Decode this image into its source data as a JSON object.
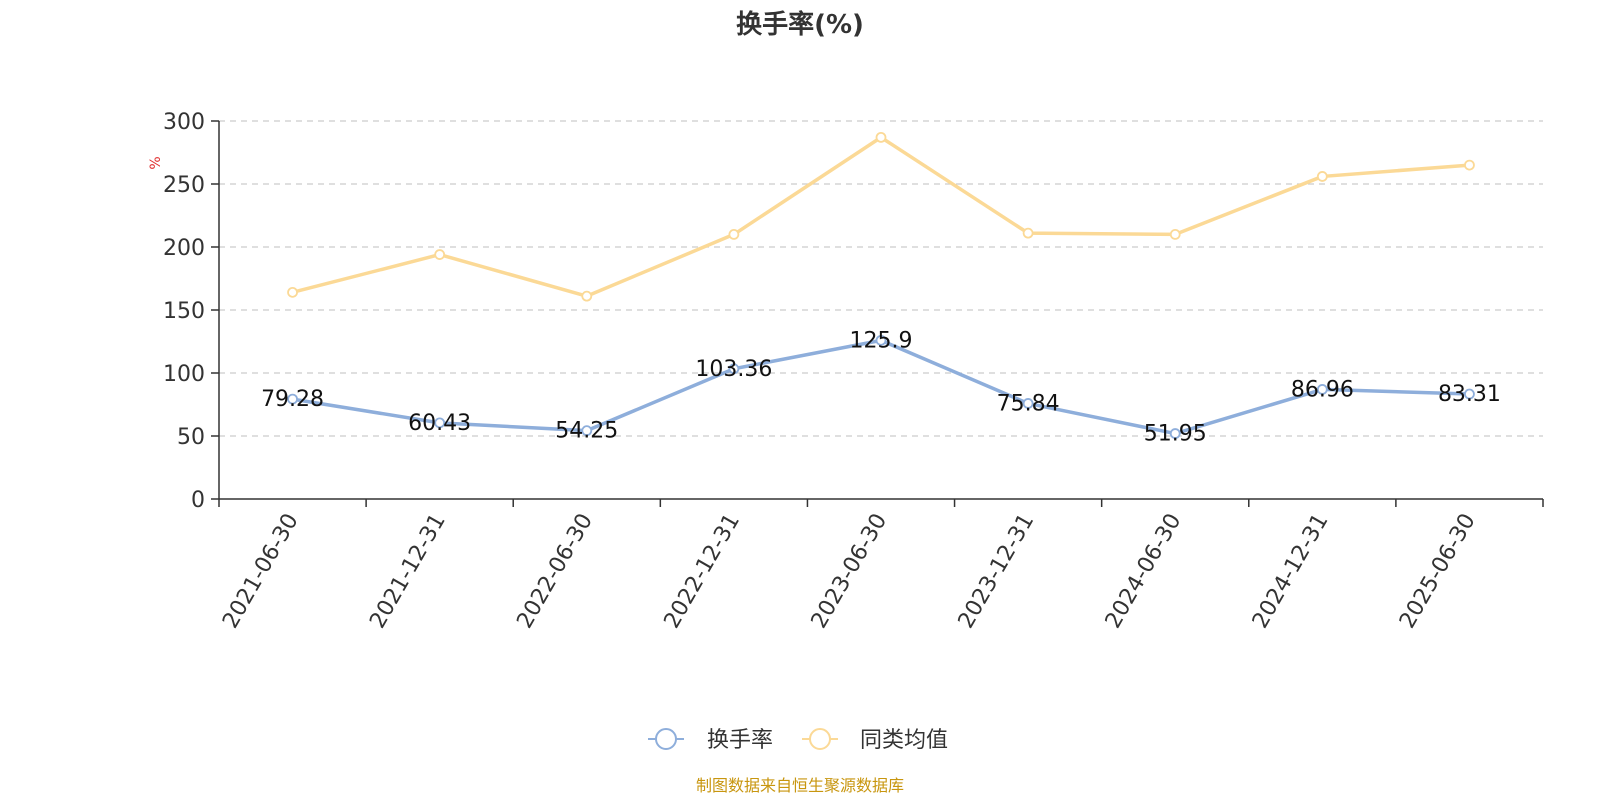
{
  "chart_data": {
    "type": "line",
    "title": "换手率(%)",
    "ylabel": "%",
    "xlabel": "",
    "categories": [
      "2021-06-30",
      "2021-12-31",
      "2022-06-30",
      "2022-12-31",
      "2023-06-30",
      "2023-12-31",
      "2024-06-30",
      "2024-12-31",
      "2025-06-30"
    ],
    "ylim": [
      0,
      300
    ],
    "yticks": [
      0,
      50,
      100,
      150,
      200,
      250,
      300
    ],
    "grid": true,
    "legend_position": "bottom",
    "series": [
      {
        "name": "换手率",
        "color": "#8eaedb",
        "values": [
          79.28,
          60.43,
          54.25,
          103.36,
          125.9,
          75.84,
          51.95,
          86.96,
          83.31
        ],
        "labels": [
          "79.28",
          "60.43",
          "54.25",
          "103.36",
          "125.9",
          "75.84",
          "51.95",
          "86.96",
          "83.31"
        ],
        "show_labels": true
      },
      {
        "name": "同类均值",
        "color": "#fbd996",
        "values": [
          164,
          194,
          161,
          210,
          287,
          211,
          210,
          256,
          265
        ],
        "show_labels": false
      }
    ]
  },
  "footer": {
    "source": "制图数据来自恒生聚源数据库",
    "source_color": "#c8960f"
  },
  "colors": {
    "axis": "#333333",
    "grid": "#cccccc",
    "ylabel": "#e03030"
  }
}
